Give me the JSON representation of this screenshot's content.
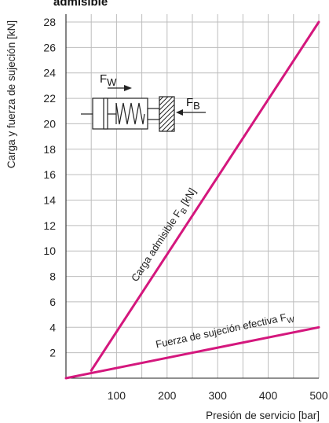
{
  "chart_data": {
    "type": "line",
    "title": "admisible",
    "xlabel": "Presión de servicio [bar]",
    "ylabel": "Carga y fuerza de sujeción [kN]",
    "xlim": [
      0,
      500
    ],
    "ylim": [
      0,
      28
    ],
    "xticks": [
      100,
      200,
      300,
      400,
      500
    ],
    "yticks": [
      2,
      4,
      6,
      8,
      10,
      12,
      14,
      16,
      18,
      20,
      22,
      24,
      26,
      28
    ],
    "grid": true,
    "series": [
      {
        "label": {
          "main": "Carga admisible F",
          "sub": "B",
          "tail": " [kN]"
        },
        "color": "#d4177d",
        "x": [
          50,
          500
        ],
        "y": [
          0.6,
          28
        ]
      },
      {
        "label": {
          "main": "Fuerza de sujeción efectiva F",
          "sub": "W"
        },
        "color": "#d4177d",
        "x": [
          0,
          500
        ],
        "y": [
          0,
          4
        ]
      }
    ]
  },
  "inset": {
    "force_w": {
      "main": "F",
      "sub": "W"
    },
    "force_b": {
      "main": "F",
      "sub": "B"
    }
  }
}
